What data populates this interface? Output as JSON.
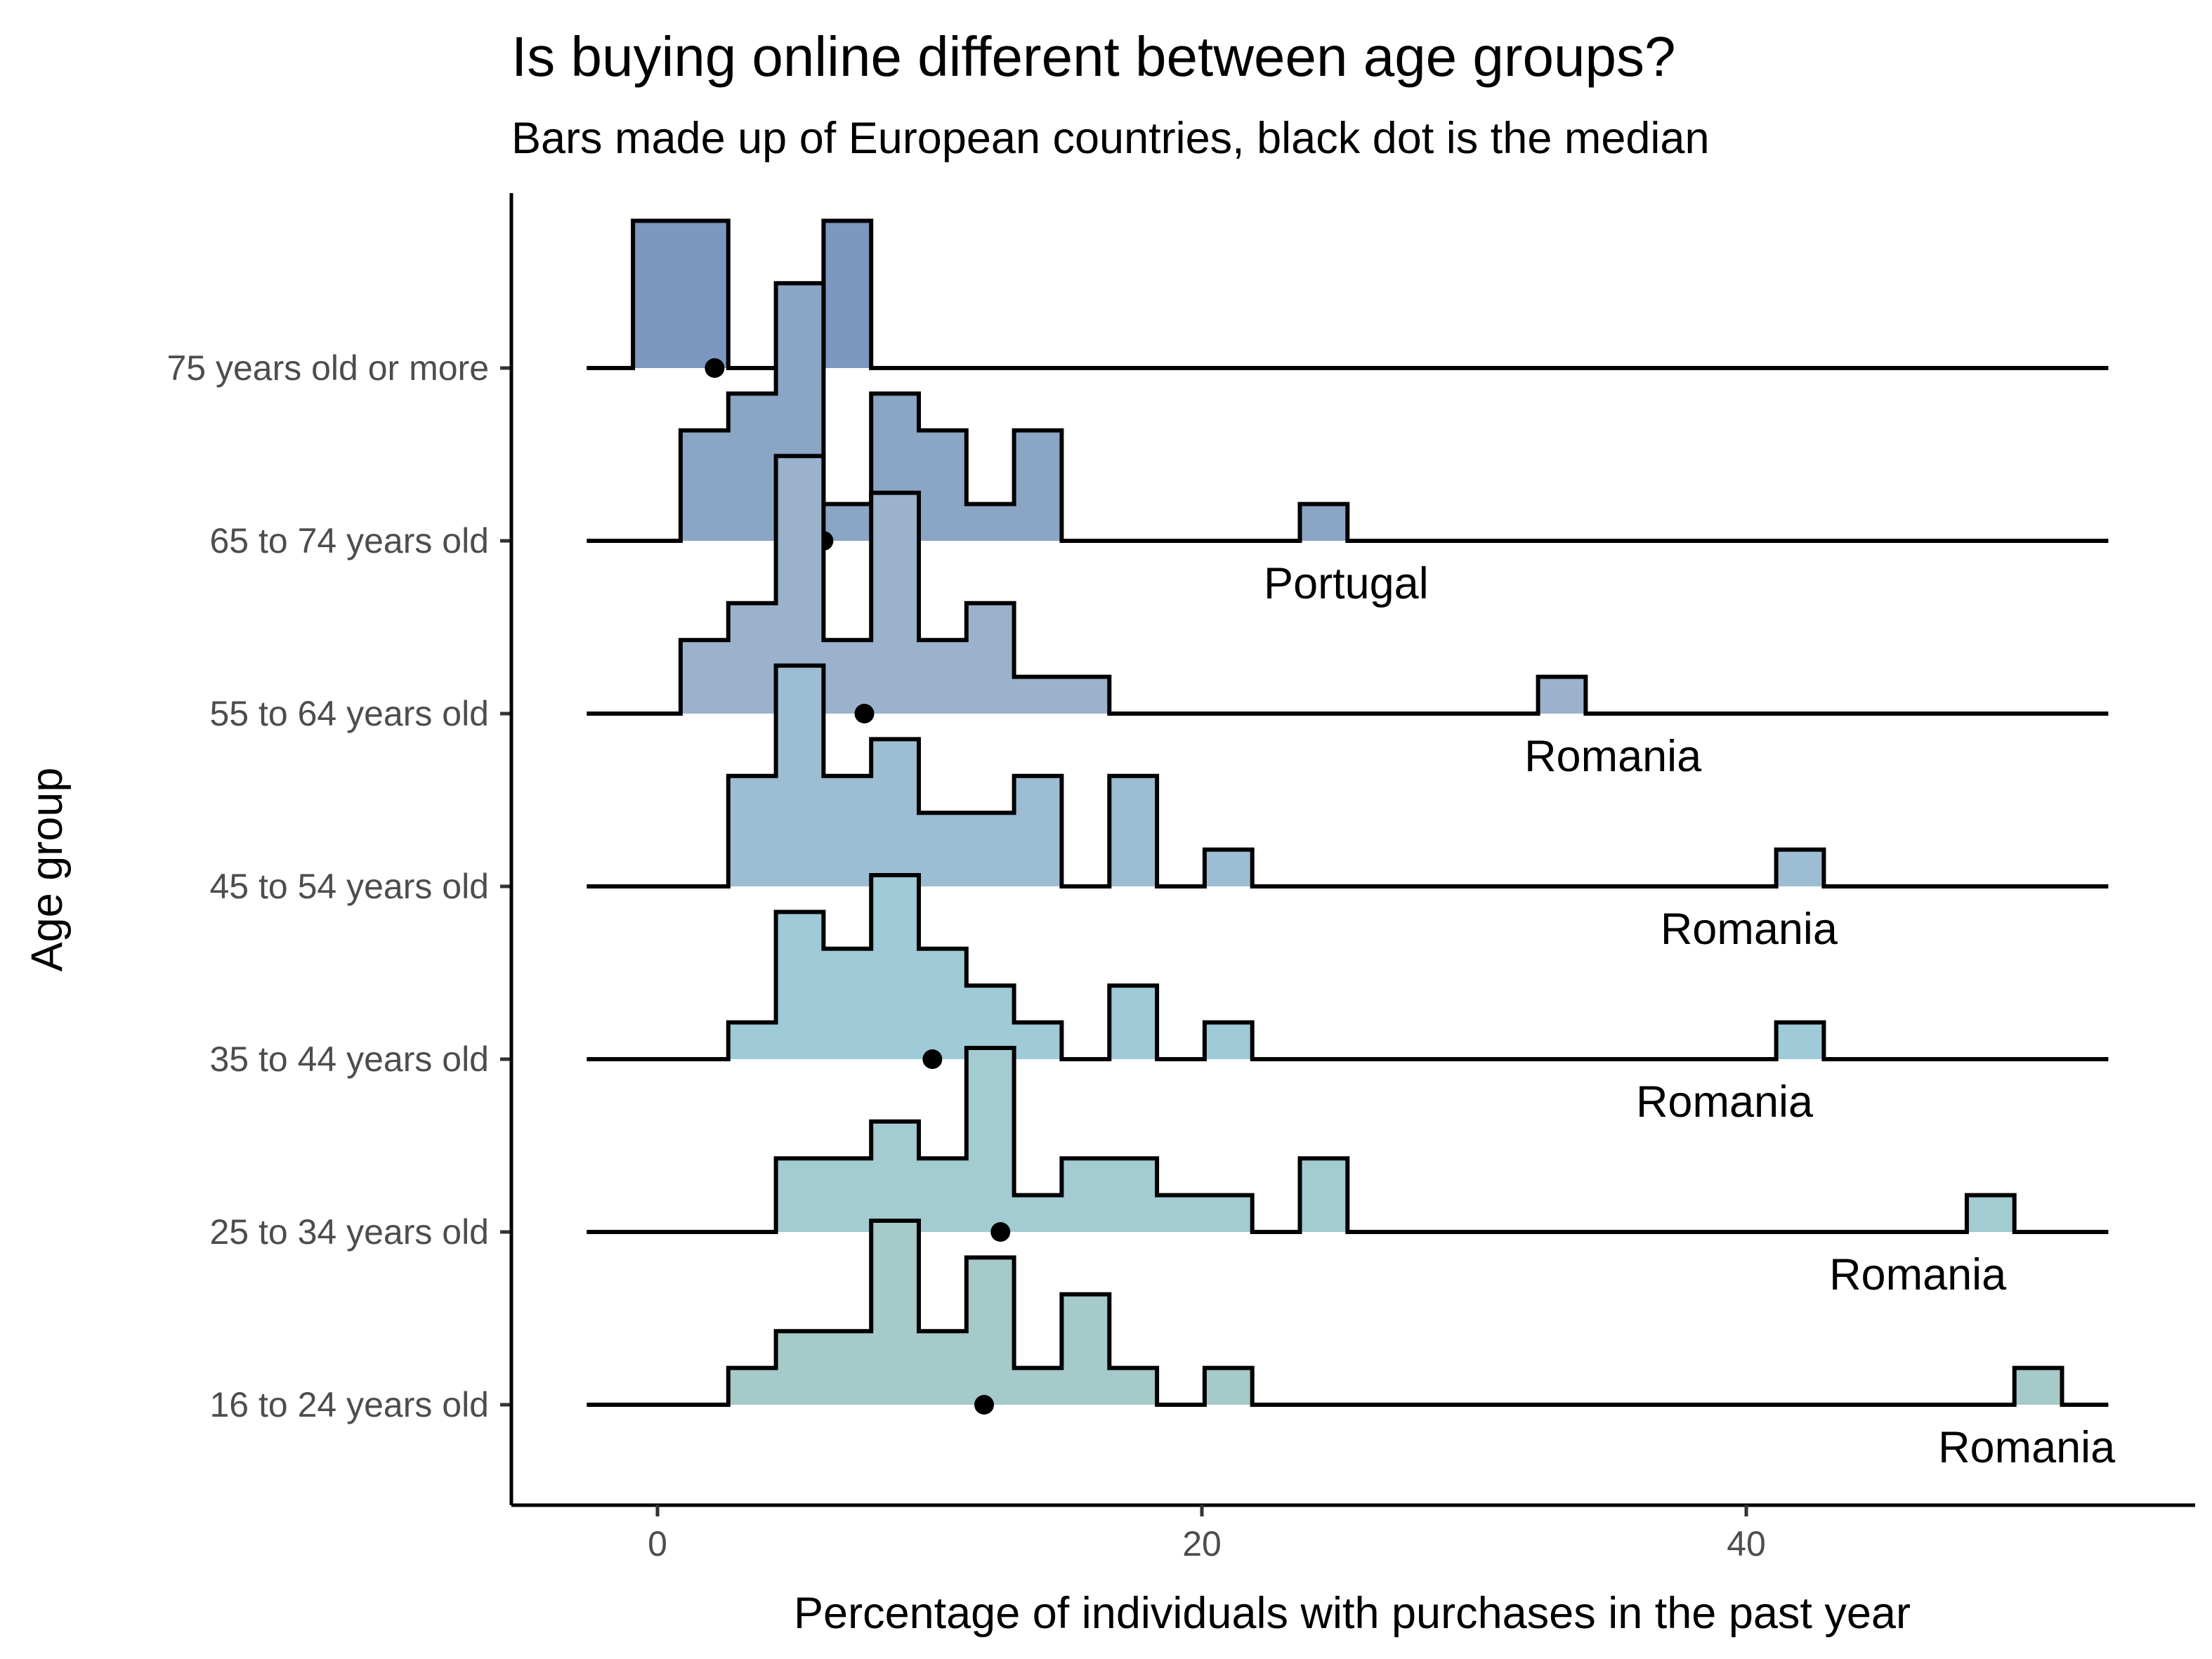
{
  "chart_data": {
    "type": "ridgeline-histogram",
    "title": "Is buying online different between age groups?",
    "subtitle": "Bars made up of European countries, black dot is the median",
    "xlabel": "Percentage of individuals with purchases in the past year",
    "ylabel": "Age group",
    "xlim": [
      -5.5,
      56
    ],
    "x_ticks": [
      0,
      20,
      40
    ],
    "x_tick_labels": [
      "0",
      "20",
      "40"
    ],
    "grid": false,
    "legend": "none",
    "bin_edges": [
      -0.9,
      0.85,
      2.6,
      4.35,
      6.1,
      7.85,
      9.6,
      11.35,
      13.1,
      14.85,
      16.6,
      18.35,
      20.1,
      21.85,
      23.6,
      25.35,
      27.1,
      28.85,
      30.6,
      32.35,
      34.1,
      35.85,
      37.6,
      39.35,
      41.1,
      42.85,
      44.6,
      46.35,
      48.1,
      49.85,
      51.6
    ],
    "baseline_range": [
      -2.6,
      53.3
    ],
    "series": [
      {
        "name": "16 to 24 years old",
        "color": "#a6c9c9",
        "counts": [
          0,
          0,
          1,
          2,
          2,
          5,
          2,
          4,
          1,
          3,
          1,
          0,
          1,
          0,
          0,
          0,
          0,
          0,
          0,
          0,
          0,
          0,
          0,
          0,
          0,
          0,
          0,
          0,
          0,
          1
        ],
        "median": 12.0,
        "annotation": "Romania",
        "annotation_x": 50.3
      },
      {
        "name": "25 to 34 years old",
        "color": "#a3cbd2",
        "counts": [
          0,
          0,
          0,
          2,
          2,
          3,
          2,
          5,
          1,
          2,
          2,
          1,
          1,
          0,
          2,
          0,
          0,
          0,
          0,
          0,
          0,
          0,
          0,
          0,
          0,
          0,
          0,
          0,
          1,
          0
        ],
        "median": 12.6,
        "annotation": "Romania",
        "annotation_x": 46.3
      },
      {
        "name": "35 to 44 years old",
        "color": "#9fcad8",
        "counts": [
          0,
          0,
          1,
          4,
          3,
          5,
          3,
          2,
          1,
          0,
          2,
          0,
          1,
          0,
          0,
          0,
          0,
          0,
          0,
          0,
          0,
          0,
          0,
          0,
          1,
          0,
          0,
          0,
          0,
          0
        ],
        "median": 10.1,
        "annotation": "Romania",
        "annotation_x": 39.2
      },
      {
        "name": "45 to 54 years old",
        "color": "#9dbdd2",
        "counts": [
          0,
          0,
          3,
          6,
          3,
          4,
          2,
          2,
          3,
          0,
          3,
          0,
          1,
          0,
          0,
          0,
          0,
          0,
          0,
          0,
          0,
          0,
          0,
          0,
          1,
          0,
          0,
          0,
          0,
          0
        ],
        "median": 8.2,
        "annotation": "Romania",
        "annotation_x": 40.1
      },
      {
        "name": "55 to 64 years old",
        "color": "#9bb2cd",
        "counts": [
          0,
          2,
          3,
          7,
          2,
          6,
          2,
          3,
          1,
          1,
          0,
          0,
          0,
          0,
          0,
          0,
          0,
          0,
          0,
          1,
          0,
          0,
          0,
          0,
          0,
          0,
          0,
          0,
          0,
          0
        ],
        "median": 7.6,
        "annotation": "Romania",
        "annotation_x": 35.1
      },
      {
        "name": "65 to 74 years old",
        "color": "#8ba5c5",
        "counts": [
          0,
          3,
          4,
          7,
          1,
          4,
          3,
          1,
          3,
          0,
          0,
          0,
          0,
          0,
          1,
          0,
          0,
          0,
          0,
          0,
          0,
          0,
          0,
          0,
          0,
          0,
          0,
          0,
          0,
          0
        ],
        "median": 6.1,
        "annotation": "Portugal",
        "annotation_x": 25.3
      },
      {
        "name": "75 years old or more",
        "color": "#7c97c0",
        "counts": [
          4,
          4,
          0,
          0,
          4,
          0,
          0,
          0,
          0,
          0,
          0,
          0,
          0,
          0,
          0,
          0,
          0,
          0,
          0,
          0,
          0,
          0,
          0,
          0,
          0,
          0,
          0,
          0,
          0,
          0
        ],
        "median": 2.1,
        "annotation": "",
        "annotation_x": 0
      }
    ]
  }
}
